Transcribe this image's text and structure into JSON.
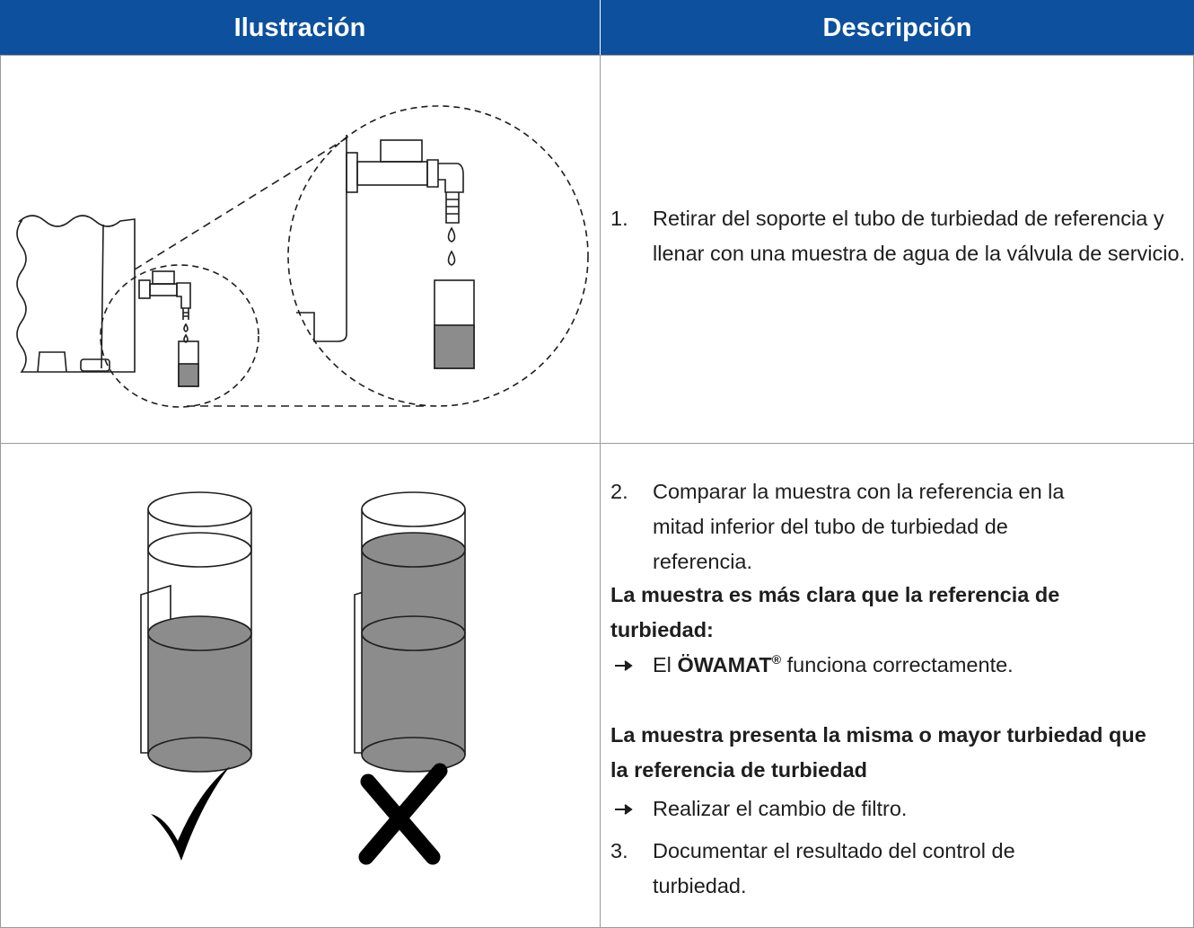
{
  "header": {
    "columns": [
      "Ilustración",
      "Descripción"
    ]
  },
  "rows": [
    {
      "steps": [
        {
          "number": "1.",
          "text": "Retirar del soporte el tubo de turbiedad de referencia y llenar con una muestra de agua de la válvula de servicio."
        }
      ]
    },
    {
      "steps": [
        {
          "number": "2.",
          "text": "Comparar la muestra con la referencia en la mitad inferior del tubo de turbiedad de referencia."
        }
      ],
      "cases": [
        {
          "condition": "La muestra es más clara que la referencia de turbiedad:",
          "result": {
            "parts": [
              "El",
              "ÖWAMAT",
              "®",
              "funciona correctamente."
            ]
          }
        },
        {
          "condition": "La muestra presenta la misma o mayor turbiedad que la referencia de turbiedad",
          "result": {
            "text": "Realizar el cambio de filtro."
          }
        }
      ],
      "final_step": {
        "number": "3.",
        "text": "Documentar el resultado del control de turbiedad."
      }
    }
  ]
}
